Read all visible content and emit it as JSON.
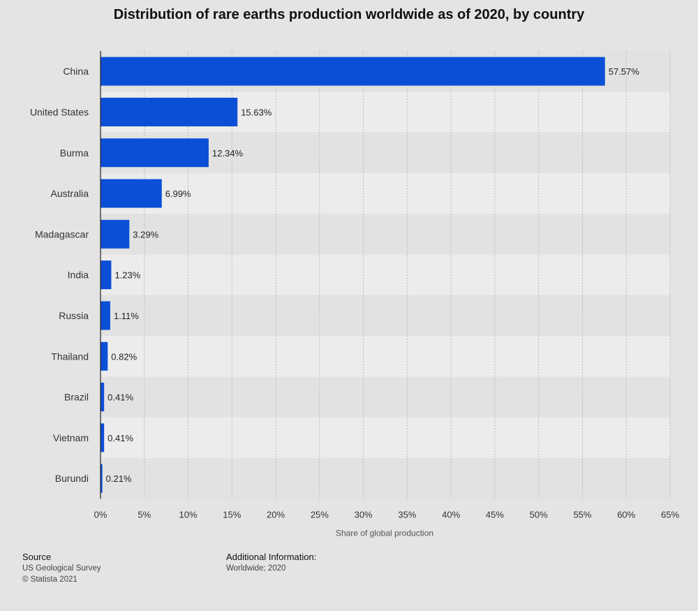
{
  "chart_data": {
    "type": "bar",
    "orientation": "horizontal",
    "title": "Distribution of rare earths production worldwide as of 2020, by country",
    "xlabel": "Share of global production",
    "categories": [
      "China",
      "United States",
      "Burma",
      "Australia",
      "Madagascar",
      "India",
      "Russia",
      "Thailand",
      "Brazil",
      "Vietnam",
      "Burundi"
    ],
    "values": [
      57.57,
      15.63,
      12.34,
      6.99,
      3.29,
      1.23,
      1.11,
      0.82,
      0.41,
      0.41,
      0.21
    ],
    "value_labels": [
      "57.57%",
      "15.63%",
      "12.34%",
      "6.99%",
      "3.29%",
      "1.23%",
      "1.11%",
      "0.82%",
      "0.41%",
      "0.41%",
      "0.21%"
    ],
    "xlim": [
      0,
      65
    ],
    "xticks": [
      0,
      5,
      10,
      15,
      20,
      25,
      30,
      35,
      40,
      45,
      50,
      55,
      60,
      65
    ],
    "xtick_labels": [
      "0%",
      "5%",
      "10%",
      "15%",
      "20%",
      "25%",
      "30%",
      "35%",
      "40%",
      "45%",
      "50%",
      "55%",
      "60%",
      "65%"
    ],
    "grid": true,
    "bar_color": "#0b4fd6"
  },
  "footer": {
    "source_heading": "Source",
    "source_lines": [
      "US Geological Survey",
      "© Statista 2021"
    ],
    "additional_heading": "Additional Information:",
    "additional_text": "Worldwide; 2020"
  }
}
